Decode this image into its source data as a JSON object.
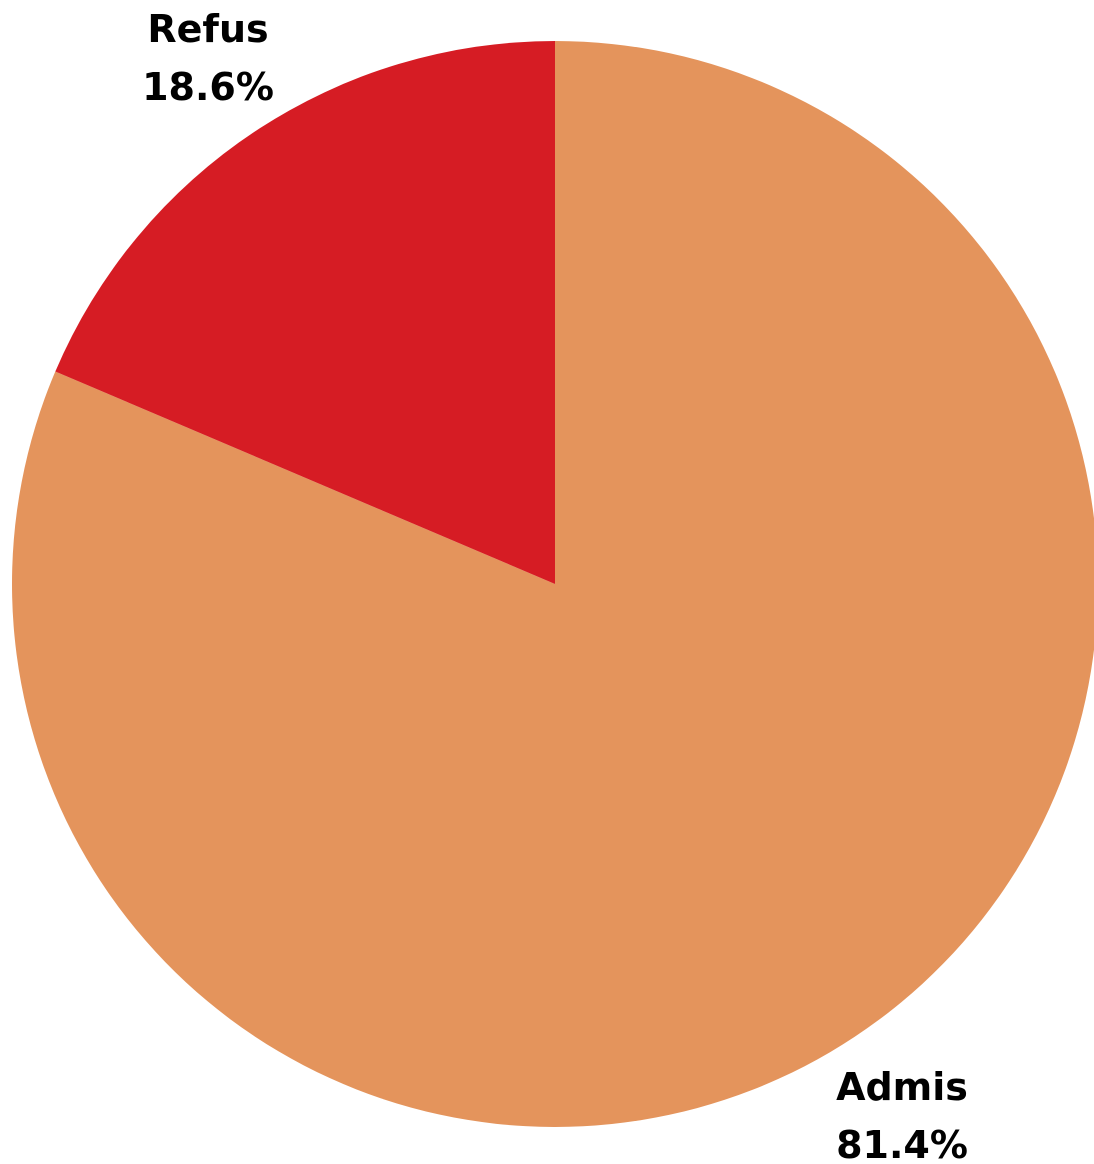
{
  "chart_data": {
    "type": "pie",
    "categories": [
      "Admis",
      "Refus"
    ],
    "values": [
      81.4,
      18.6
    ],
    "labels": [
      "81.4%",
      "18.6%"
    ],
    "colors": [
      "#E4945C",
      "#D61C24"
    ],
    "title": "",
    "legend": "none"
  }
}
